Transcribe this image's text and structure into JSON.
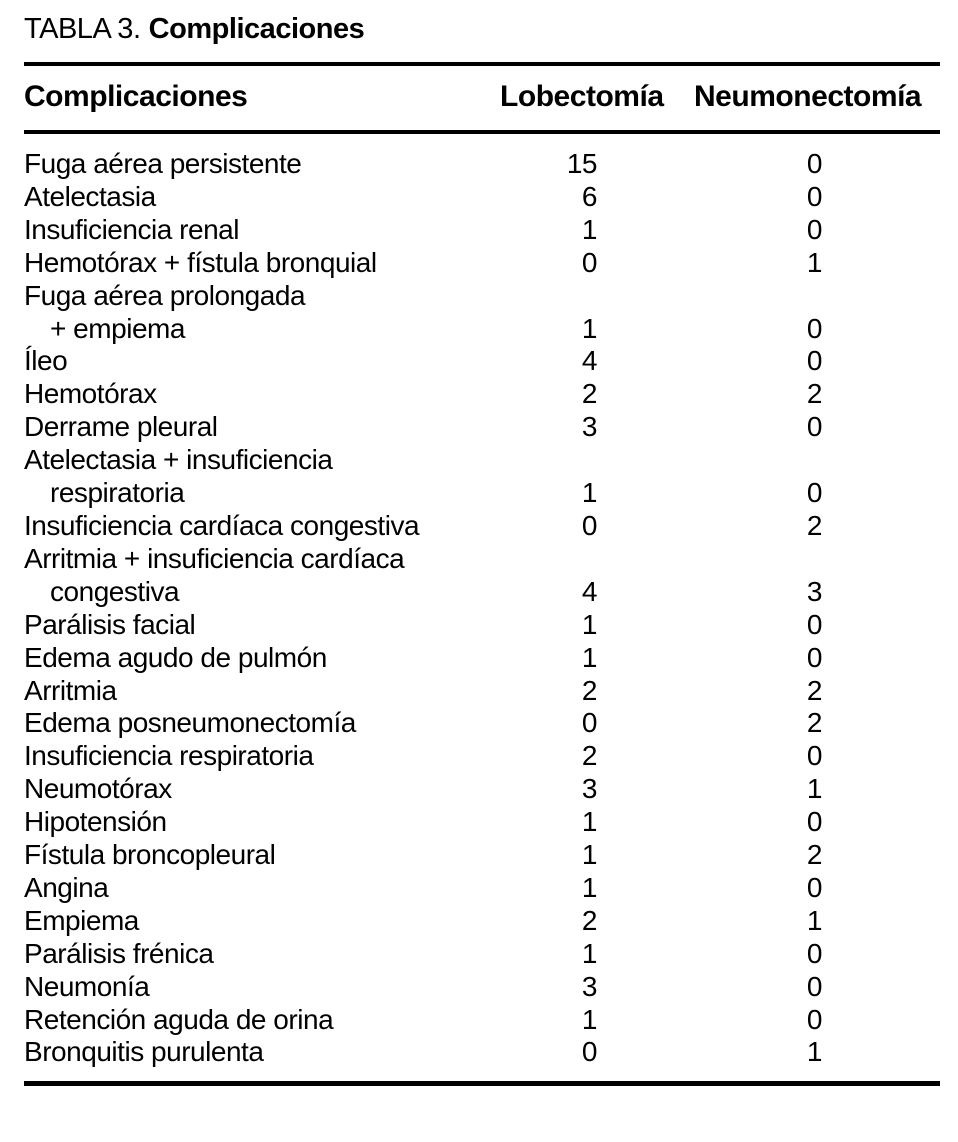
{
  "colors": {
    "text": "#000000",
    "bg": "#ffffff",
    "rule": "#000000"
  },
  "table": {
    "caption_prefix": "TABLA 3.",
    "caption_bold": "Complicaciones",
    "columns": [
      "Complicaciones",
      "Lobectomía",
      "Neumonectomía"
    ],
    "rows": [
      {
        "name": "Fuga aérea persistente",
        "lobectomia": "15",
        "neumonectomia": "0"
      },
      {
        "name": "Atelectasia",
        "lobectomia": "6",
        "neumonectomia": "0"
      },
      {
        "name": "Insuficiencia renal",
        "lobectomia": "1",
        "neumonectomia": "0"
      },
      {
        "name": "Hemotórax + fístula bronquial",
        "lobectomia": "0",
        "neumonectomia": "1"
      },
      {
        "name": "Fuga aérea prolongada",
        "name_line2": "+ empiema",
        "lobectomia": "1",
        "neumonectomia": "0"
      },
      {
        "name": "Íleo",
        "lobectomia": "4",
        "neumonectomia": "0"
      },
      {
        "name": "Hemotórax",
        "lobectomia": "2",
        "neumonectomia": "2"
      },
      {
        "name": "Derrame pleural",
        "lobectomia": "3",
        "neumonectomia": "0"
      },
      {
        "name": "Atelectasia + insuficiencia",
        "name_line2": "respiratoria",
        "lobectomia": "1",
        "neumonectomia": "0"
      },
      {
        "name": "Insuficiencia cardíaca congestiva",
        "lobectomia": "0",
        "neumonectomia": "2"
      },
      {
        "name": "Arritmia + insuficiencia cardíaca",
        "name_line2": "congestiva",
        "lobectomia": "4",
        "neumonectomia": "3"
      },
      {
        "name": "Parálisis facial",
        "lobectomia": "1",
        "neumonectomia": "0"
      },
      {
        "name": "Edema agudo de pulmón",
        "lobectomia": "1",
        "neumonectomia": "0"
      },
      {
        "name": "Arritmia",
        "lobectomia": "2",
        "neumonectomia": "2"
      },
      {
        "name": "Edema posneumonectomía",
        "lobectomia": "0",
        "neumonectomia": "2"
      },
      {
        "name": "Insuficiencia respiratoria",
        "lobectomia": "2",
        "neumonectomia": "0"
      },
      {
        "name": "Neumotórax",
        "lobectomia": "3",
        "neumonectomia": "1"
      },
      {
        "name": "Hipotensión",
        "lobectomia": "1",
        "neumonectomia": "0"
      },
      {
        "name": "Fístula broncopleural",
        "lobectomia": "1",
        "neumonectomia": "2"
      },
      {
        "name": "Angina",
        "lobectomia": "1",
        "neumonectomia": "0"
      },
      {
        "name": "Empiema",
        "lobectomia": "2",
        "neumonectomia": "1"
      },
      {
        "name": "Parálisis frénica",
        "lobectomia": "1",
        "neumonectomia": "0"
      },
      {
        "name": "Neumonía",
        "lobectomia": "3",
        "neumonectomia": "0"
      },
      {
        "name": "Retención aguda de orina",
        "lobectomia": "1",
        "neumonectomia": "0"
      },
      {
        "name": "Bronquitis purulenta",
        "lobectomia": "0",
        "neumonectomia": "1"
      }
    ]
  }
}
